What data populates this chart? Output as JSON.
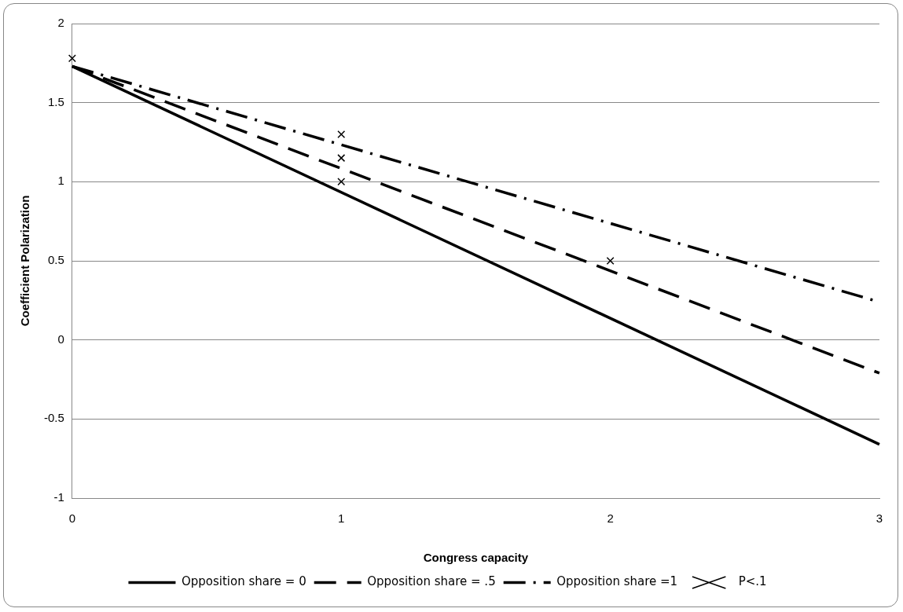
{
  "chart_data": {
    "type": "line",
    "xlabel": "Congress capacity",
    "ylabel": "Coefficient Polarization",
    "xlim": [
      0,
      3
    ],
    "xticks": [
      0,
      1,
      2,
      3
    ],
    "ylim": [
      -1,
      2
    ],
    "yticks": [
      -1,
      -0.5,
      0,
      0.5,
      1,
      1.5,
      2
    ],
    "grid": "y",
    "legend": "bottom",
    "marker": "none",
    "series": [
      {
        "name": "Opposition share = 0",
        "color": "#000000",
        "line_style": "solid",
        "x": [
          0,
          3
        ],
        "values": [
          1.73,
          -0.66
        ]
      },
      {
        "name": "Opposition share = .5",
        "color": "#000000",
        "line_style": "dashed",
        "x": [
          0,
          3
        ],
        "values": [
          1.73,
          -0.21
        ]
      },
      {
        "name": "Opposition share =1",
        "color": "#000000",
        "line_style": "dashdot",
        "x": [
          0,
          3
        ],
        "values": [
          1.73,
          0.24
        ]
      },
      {
        "name": "P<.1",
        "type": "scatter",
        "marker": "cross",
        "color": "#000000",
        "x": [
          0,
          1,
          1,
          1,
          2
        ],
        "values": [
          1.78,
          1.3,
          1.15,
          1.0,
          0.5
        ]
      }
    ]
  }
}
